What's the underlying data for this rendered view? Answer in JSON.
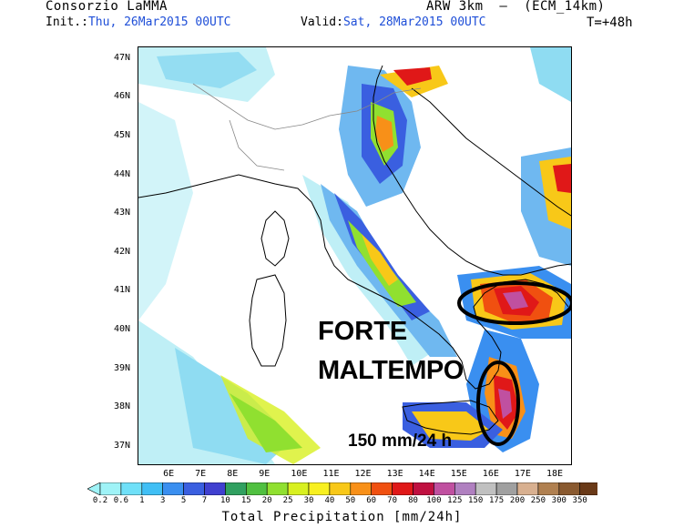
{
  "header": {
    "agency": "Consorzio LaMMA",
    "model": "ARW 3km  –  (ECM_14km)",
    "init_label": "Init.:",
    "init_value": "Thu, 26Mar2015 00UTC",
    "valid_label": "Valid:",
    "valid_value": "Sat, 28Mar2015 00UTC",
    "forecast_step": "T=+48h"
  },
  "map": {
    "lat_ticks": [
      "47N",
      "46N",
      "45N",
      "44N",
      "43N",
      "42N",
      "41N",
      "40N",
      "39N",
      "38N",
      "37N"
    ],
    "lon_ticks": [
      "6E",
      "7E",
      "8E",
      "9E",
      "10E",
      "11E",
      "12E",
      "13E",
      "14E",
      "15E",
      "16E",
      "17E",
      "18E"
    ],
    "lat_range": [
      36.5,
      47.3
    ],
    "lon_range": [
      5.0,
      18.6
    ]
  },
  "annotations": {
    "headline_1": "FORTE",
    "headline_2": "MALTEMPO",
    "amount": "150 mm/24 h"
  },
  "colorbar": {
    "title": "Total Precipitation [mm/24h]",
    "levels": [
      "0.2",
      "0.6",
      "1",
      "3",
      "5",
      "7",
      "10",
      "15",
      "20",
      "25",
      "30",
      "40",
      "50",
      "60",
      "70",
      "80",
      "100",
      "125",
      "150",
      "175",
      "200",
      "250",
      "300",
      "350"
    ],
    "colors": [
      "#9ff3f7",
      "#6fe0f8",
      "#40bff5",
      "#3a8ff0",
      "#3a5fe0",
      "#4040d0",
      "#30a060",
      "#50c040",
      "#90e030",
      "#d8f020",
      "#f8f020",
      "#f8c818",
      "#f89018",
      "#f05010",
      "#e01818",
      "#c01040",
      "#c050a0",
      "#b080c0",
      "#c0c0c0",
      "#a0a0a0",
      "#d8b090",
      "#b08050",
      "#8a5a30",
      "#6a3a18"
    ]
  }
}
